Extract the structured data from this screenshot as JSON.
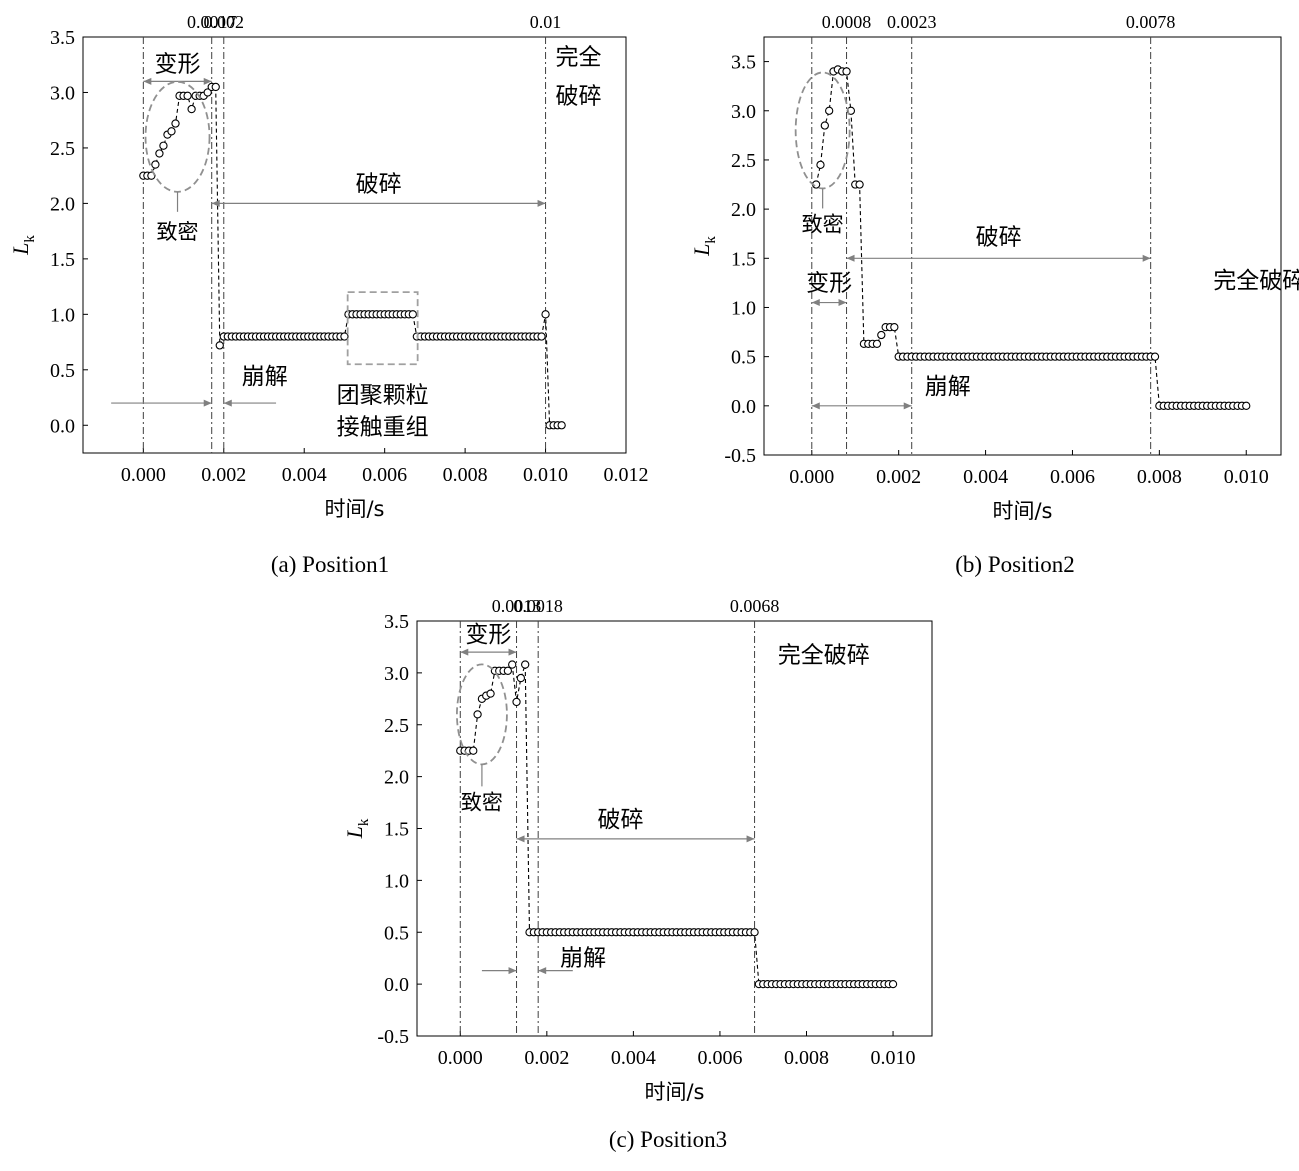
{
  "chart_data": [
    {
      "type": "scatter",
      "caption": "(a) Position1",
      "xlabel": "时间/s",
      "ylabel_main": "L",
      "ylabel_sub": "k",
      "xlim": [
        -0.0015,
        0.012
      ],
      "ylim": [
        -0.25,
        3.5
      ],
      "xticks": [
        "0.000",
        "0.002",
        "0.004",
        "0.006",
        "0.008",
        "0.010",
        "0.012"
      ],
      "yticks": [
        "0.0",
        "0.5",
        "1.0",
        "1.5",
        "2.0",
        "2.5",
        "3.0",
        "3.5"
      ],
      "vlines": [
        {
          "x": 0.0,
          "label": ""
        },
        {
          "x": 0.0017,
          "label": "0.0017"
        },
        {
          "x": 0.002,
          "label": "0.002"
        },
        {
          "x": 0.01,
          "label": "0.01"
        }
      ],
      "x": [
        0.0,
        0.0001,
        0.0002,
        0.0003,
        0.0004,
        0.0005,
        0.0006,
        0.0007,
        0.0008,
        0.0009,
        0.001,
        0.0011,
        0.0012,
        0.0013,
        0.0014,
        0.0015,
        0.0016,
        0.0017,
        0.0018,
        0.0019,
        0.002,
        0.0021,
        0.0022,
        0.0023,
        0.0024,
        0.0025,
        0.0026,
        0.0027,
        0.0028,
        0.0029,
        0.003,
        0.0031,
        0.0032,
        0.0033,
        0.0034,
        0.0035,
        0.0036,
        0.0037,
        0.0038,
        0.0039,
        0.004,
        0.0041,
        0.0042,
        0.0043,
        0.0044,
        0.0045,
        0.0046,
        0.0047,
        0.0048,
        0.0049,
        0.005,
        0.0051,
        0.0052,
        0.0053,
        0.0054,
        0.0055,
        0.0056,
        0.0057,
        0.0058,
        0.0059,
        0.006,
        0.0061,
        0.0062,
        0.0063,
        0.0064,
        0.0065,
        0.0066,
        0.0067,
        0.0068,
        0.0069,
        0.007,
        0.0071,
        0.0072,
        0.0073,
        0.0074,
        0.0075,
        0.0076,
        0.0077,
        0.0078,
        0.0079,
        0.008,
        0.0081,
        0.0082,
        0.0083,
        0.0084,
        0.0085,
        0.0086,
        0.0087,
        0.0088,
        0.0089,
        0.009,
        0.0091,
        0.0092,
        0.0093,
        0.0094,
        0.0095,
        0.0096,
        0.0097,
        0.0098,
        0.0099,
        0.01,
        0.0101,
        0.0102,
        0.0103,
        0.0104
      ],
      "y": [
        2.25,
        2.25,
        2.25,
        2.35,
        2.45,
        2.52,
        2.62,
        2.65,
        2.72,
        2.97,
        2.97,
        2.97,
        2.85,
        2.97,
        2.97,
        2.97,
        3.0,
        3.05,
        3.05,
        0.72,
        0.8,
        0.8,
        0.8,
        0.8,
        0.8,
        0.8,
        0.8,
        0.8,
        0.8,
        0.8,
        0.8,
        0.8,
        0.8,
        0.8,
        0.8,
        0.8,
        0.8,
        0.8,
        0.8,
        0.8,
        0.8,
        0.8,
        0.8,
        0.8,
        0.8,
        0.8,
        0.8,
        0.8,
        0.8,
        0.8,
        0.8,
        1.0,
        1.0,
        1.0,
        1.0,
        1.0,
        1.0,
        1.0,
        1.0,
        1.0,
        1.0,
        1.0,
        1.0,
        1.0,
        1.0,
        1.0,
        1.0,
        1.0,
        0.8,
        0.8,
        0.8,
        0.8,
        0.8,
        0.8,
        0.8,
        0.8,
        0.8,
        0.8,
        0.8,
        0.8,
        0.8,
        0.8,
        0.8,
        0.8,
        0.8,
        0.8,
        0.8,
        0.8,
        0.8,
        0.8,
        0.8,
        0.8,
        0.8,
        0.8,
        0.8,
        0.8,
        0.8,
        0.8,
        0.8,
        0.8,
        1.0,
        0.0,
        0.0,
        0.0,
        0.0
      ],
      "annotations": {
        "deform": "变形",
        "dense": "致密",
        "break": "破碎",
        "collapse": "崩解",
        "full": "完全破碎",
        "full_line1": "完全",
        "full_line2": "破碎",
        "regroup_line1": "团聚颗粒",
        "regroup_line2": "接触重组"
      }
    },
    {
      "type": "scatter",
      "caption": "(b) Position2",
      "xlabel": "时间/s",
      "ylabel_main": "L",
      "ylabel_sub": "k",
      "xlim": [
        -0.0011,
        0.0108
      ],
      "ylim": [
        -0.5,
        3.75
      ],
      "xticks": [
        "0.000",
        "0.002",
        "0.004",
        "0.006",
        "0.008",
        "0.010"
      ],
      "yticks": [
        "-0.5",
        "0.0",
        "0.5",
        "1.0",
        "1.5",
        "2.0",
        "2.5",
        "3.0",
        "3.5"
      ],
      "vlines": [
        {
          "x": 0.0,
          "label": ""
        },
        {
          "x": 0.0008,
          "label": "0.0008"
        },
        {
          "x": 0.0023,
          "label": "0.0023"
        },
        {
          "x": 0.0078,
          "label": "0.0078"
        }
      ],
      "x": [
        0.0001,
        0.0002,
        0.0003,
        0.0004,
        0.0005,
        0.0006,
        0.0007,
        0.0008,
        0.0009,
        0.001,
        0.0011,
        0.0012,
        0.0013,
        0.0014,
        0.0015,
        0.0016,
        0.0017,
        0.0018,
        0.0019,
        0.002,
        0.0021,
        0.0022,
        0.0023,
        0.0024,
        0.0025,
        0.0026,
        0.0027,
        0.0028,
        0.0029,
        0.003,
        0.0031,
        0.0032,
        0.0033,
        0.0034,
        0.0035,
        0.0036,
        0.0037,
        0.0038,
        0.0039,
        0.004,
        0.0041,
        0.0042,
        0.0043,
        0.0044,
        0.0045,
        0.0046,
        0.0047,
        0.0048,
        0.0049,
        0.005,
        0.0051,
        0.0052,
        0.0053,
        0.0054,
        0.0055,
        0.0056,
        0.0057,
        0.0058,
        0.0059,
        0.006,
        0.0061,
        0.0062,
        0.0063,
        0.0064,
        0.0065,
        0.0066,
        0.0067,
        0.0068,
        0.0069,
        0.007,
        0.0071,
        0.0072,
        0.0073,
        0.0074,
        0.0075,
        0.0076,
        0.0077,
        0.0078,
        0.0079,
        0.008,
        0.0081,
        0.0082,
        0.0083,
        0.0084,
        0.0085,
        0.0086,
        0.0087,
        0.0088,
        0.0089,
        0.009,
        0.0091,
        0.0092,
        0.0093,
        0.0094,
        0.0095,
        0.0096,
        0.0097,
        0.0098,
        0.0099,
        0.01
      ],
      "y": [
        2.25,
        2.45,
        2.85,
        3.0,
        3.4,
        3.42,
        3.4,
        3.4,
        3.0,
        2.25,
        2.25,
        0.63,
        0.63,
        0.63,
        0.63,
        0.72,
        0.8,
        0.8,
        0.8,
        0.5,
        0.5,
        0.5,
        0.5,
        0.5,
        0.5,
        0.5,
        0.5,
        0.5,
        0.5,
        0.5,
        0.5,
        0.5,
        0.5,
        0.5,
        0.5,
        0.5,
        0.5,
        0.5,
        0.5,
        0.5,
        0.5,
        0.5,
        0.5,
        0.5,
        0.5,
        0.5,
        0.5,
        0.5,
        0.5,
        0.5,
        0.5,
        0.5,
        0.5,
        0.5,
        0.5,
        0.5,
        0.5,
        0.5,
        0.5,
        0.5,
        0.5,
        0.5,
        0.5,
        0.5,
        0.5,
        0.5,
        0.5,
        0.5,
        0.5,
        0.5,
        0.5,
        0.5,
        0.5,
        0.5,
        0.5,
        0.5,
        0.5,
        0.5,
        0.5,
        0.0,
        0.0,
        0.0,
        0.0,
        0.0,
        0.0,
        0.0,
        0.0,
        0.0,
        0.0,
        0.0,
        0.0,
        0.0,
        0.0,
        0.0,
        0.0,
        0.0,
        0.0,
        0.0,
        0.0,
        0.0
      ],
      "annotations": {
        "deform": "变形",
        "dense": "致密",
        "break": "破碎",
        "collapse": "崩解",
        "full": "完全破碎"
      }
    },
    {
      "type": "scatter",
      "caption": "(c) Position3",
      "xlabel": "时间/s",
      "ylabel_main": "L",
      "ylabel_sub": "k",
      "xlim": [
        -0.001,
        0.0109
      ],
      "ylim": [
        -0.5,
        3.5
      ],
      "xticks": [
        "0.000",
        "0.002",
        "0.004",
        "0.006",
        "0.008",
        "0.010"
      ],
      "yticks": [
        "-0.5",
        "0.0",
        "0.5",
        "1.0",
        "1.5",
        "2.0",
        "2.5",
        "3.0",
        "3.5"
      ],
      "vlines": [
        {
          "x": 0.0,
          "label": ""
        },
        {
          "x": 0.0013,
          "label": "0.0013"
        },
        {
          "x": 0.0018,
          "label": "0.0018"
        },
        {
          "x": 0.0068,
          "label": "0.0068"
        }
      ],
      "x": [
        0.0,
        0.0001,
        0.0002,
        0.0003,
        0.0004,
        0.0005,
        0.0006,
        0.0007,
        0.0008,
        0.0009,
        0.001,
        0.0011,
        0.0012,
        0.0013,
        0.0014,
        0.0015,
        0.0016,
        0.0017,
        0.0018,
        0.0019,
        0.002,
        0.0021,
        0.0022,
        0.0023,
        0.0024,
        0.0025,
        0.0026,
        0.0027,
        0.0028,
        0.0029,
        0.003,
        0.0031,
        0.0032,
        0.0033,
        0.0034,
        0.0035,
        0.0036,
        0.0037,
        0.0038,
        0.0039,
        0.004,
        0.0041,
        0.0042,
        0.0043,
        0.0044,
        0.0045,
        0.0046,
        0.0047,
        0.0048,
        0.0049,
        0.005,
        0.0051,
        0.0052,
        0.0053,
        0.0054,
        0.0055,
        0.0056,
        0.0057,
        0.0058,
        0.0059,
        0.006,
        0.0061,
        0.0062,
        0.0063,
        0.0064,
        0.0065,
        0.0066,
        0.0067,
        0.0068,
        0.0069,
        0.007,
        0.0071,
        0.0072,
        0.0073,
        0.0074,
        0.0075,
        0.0076,
        0.0077,
        0.0078,
        0.0079,
        0.008,
        0.0081,
        0.0082,
        0.0083,
        0.0084,
        0.0085,
        0.0086,
        0.0087,
        0.0088,
        0.0089,
        0.009,
        0.0091,
        0.0092,
        0.0093,
        0.0094,
        0.0095,
        0.0096,
        0.0097,
        0.0098,
        0.0099,
        0.01
      ],
      "y": [
        2.25,
        2.25,
        2.25,
        2.25,
        2.6,
        2.75,
        2.78,
        2.8,
        3.02,
        3.02,
        3.02,
        3.02,
        3.08,
        2.72,
        2.95,
        3.08,
        0.5,
        0.5,
        0.5,
        0.5,
        0.5,
        0.5,
        0.5,
        0.5,
        0.5,
        0.5,
        0.5,
        0.5,
        0.5,
        0.5,
        0.5,
        0.5,
        0.5,
        0.5,
        0.5,
        0.5,
        0.5,
        0.5,
        0.5,
        0.5,
        0.5,
        0.5,
        0.5,
        0.5,
        0.5,
        0.5,
        0.5,
        0.5,
        0.5,
        0.5,
        0.5,
        0.5,
        0.5,
        0.5,
        0.5,
        0.5,
        0.5,
        0.5,
        0.5,
        0.5,
        0.5,
        0.5,
        0.5,
        0.5,
        0.5,
        0.5,
        0.5,
        0.5,
        0.5,
        0.0,
        0.0,
        0.0,
        0.0,
        0.0,
        0.0,
        0.0,
        0.0,
        0.0,
        0.0,
        0.0,
        0.0,
        0.0,
        0.0,
        0.0,
        0.0,
        0.0,
        0.0,
        0.0,
        0.0,
        0.0,
        0.0,
        0.0,
        0.0,
        0.0,
        0.0,
        0.0,
        0.0,
        0.0,
        0.0,
        0.0,
        0.0
      ],
      "annotations": {
        "deform": "变形",
        "dense": "致密",
        "break": "破碎",
        "collapse": "崩解",
        "full": "完全破碎"
      }
    }
  ]
}
